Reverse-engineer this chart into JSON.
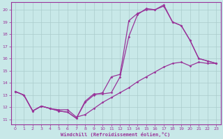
{
  "bg_color": "#c8e8e8",
  "line_color": "#993399",
  "grid_color": "#aacccc",
  "xlabel": "Windchill (Refroidissement éolien,°C)",
  "xlabel_color": "#993399",
  "tick_color": "#993399",
  "spine_color": "#993399",
  "xlim": [
    -0.5,
    23.5
  ],
  "ylim": [
    10.6,
    20.6
  ],
  "yticks": [
    11,
    12,
    13,
    14,
    15,
    16,
    17,
    18,
    19,
    20
  ],
  "xticks": [
    0,
    1,
    2,
    3,
    4,
    5,
    6,
    7,
    8,
    9,
    10,
    11,
    12,
    13,
    14,
    15,
    16,
    17,
    18,
    19,
    20,
    21,
    22,
    23
  ],
  "curve1_x": [
    0,
    1,
    2,
    3,
    4,
    5,
    6,
    7,
    8,
    9,
    10,
    11,
    12,
    13,
    14,
    15,
    16,
    17,
    18,
    19,
    20,
    21,
    22,
    23
  ],
  "curve1_y": [
    13.3,
    13.0,
    11.7,
    12.1,
    11.9,
    11.7,
    11.6,
    11.1,
    12.5,
    13.1,
    13.1,
    13.2,
    14.5,
    17.8,
    19.6,
    20.1,
    20.0,
    20.3,
    19.0,
    18.7,
    17.5,
    16.0,
    15.8,
    15.6
  ],
  "curve2_x": [
    0,
    1,
    2,
    3,
    4,
    5,
    6,
    7,
    8,
    9,
    10,
    11,
    12,
    13,
    14,
    15,
    16,
    17,
    18,
    19,
    20,
    21,
    22,
    23
  ],
  "curve2_y": [
    13.3,
    13.0,
    11.7,
    12.1,
    11.9,
    11.7,
    11.6,
    11.1,
    12.4,
    13.0,
    13.2,
    14.5,
    14.7,
    19.1,
    19.7,
    20.0,
    20.0,
    20.4,
    19.0,
    18.7,
    17.5,
    16.0,
    15.8,
    15.6
  ],
  "curve3_x": [
    0,
    1,
    2,
    3,
    4,
    5,
    6,
    7,
    8,
    9,
    10,
    11,
    12,
    13,
    14,
    15,
    16,
    17,
    18,
    19,
    20,
    21,
    22,
    23
  ],
  "curve3_y": [
    13.3,
    13.0,
    11.7,
    12.1,
    11.9,
    11.8,
    11.8,
    11.2,
    11.4,
    11.9,
    12.4,
    12.8,
    13.2,
    13.6,
    14.1,
    14.5,
    14.9,
    15.3,
    15.6,
    15.7,
    15.4,
    15.7,
    15.6,
    15.6
  ]
}
